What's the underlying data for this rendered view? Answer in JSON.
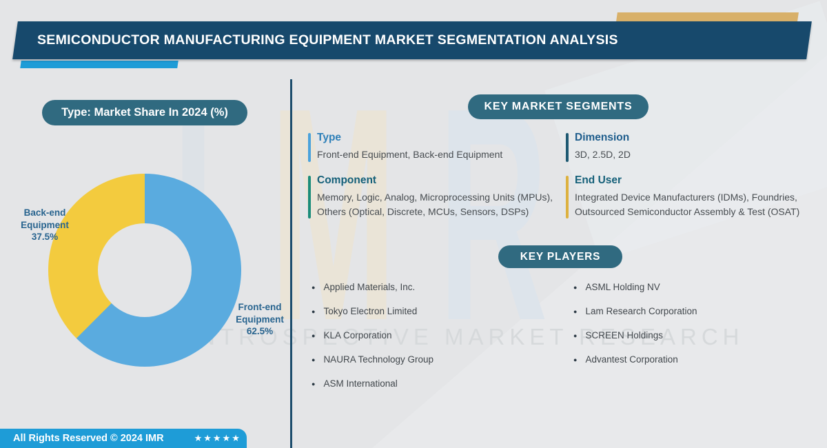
{
  "header": {
    "title": "SEMICONDUCTOR MANUFACTURING EQUIPMENT MARKET SEGMENTATION ANALYSIS"
  },
  "chart_data": {
    "type": "pie",
    "donut": true,
    "title": "Type: Market Share In 2024 (%)",
    "labels": [
      "Front-end Equipment",
      "Back-end Equipment"
    ],
    "values": [
      62.5,
      37.5
    ],
    "value_labels": [
      "62.5%",
      "37.5%"
    ],
    "colors": [
      "#5aabdf",
      "#f3cb3e"
    ],
    "start_angle_deg": 0,
    "direction": "clockwise",
    "legend_position": "outside-labels",
    "hole_color": "#e4e5e7"
  },
  "chart_section": {
    "badge": "Type: Market Share In 2024 (%)"
  },
  "segments": {
    "badge": "KEY MARKET SEGMENTS",
    "items": [
      {
        "title": "Type",
        "text": "Front-end Equipment, Back-end Equipment",
        "accent": "#4aa2dc"
      },
      {
        "title": "Dimension",
        "text": "3D, 2.5D, 2D",
        "accent": "#1e5972"
      },
      {
        "title": "Component",
        "text": "Memory, Logic, Analog, Microprocessing Units (MPUs), Others (Optical, Discrete, MCUs, Sensors, DSPs)",
        "accent": "#1a8c7a"
      },
      {
        "title": "End User",
        "text": "Integrated Device Manufacturers (IDMs), Foundries, Outsourced Semiconductor Assembly & Test (OSAT)",
        "accent": "#ddb13f"
      }
    ]
  },
  "players": {
    "badge": "KEY PLAYERS",
    "col1": [
      "Applied Materials, Inc.",
      "Tokyo Electron Limited",
      "KLA Corporation",
      "NAURA Technology Group",
      "ASM International"
    ],
    "col2": [
      "ASML Holding NV",
      "Lam Research Corporation",
      "SCREEN Holdings",
      "Advantest Corporation"
    ]
  },
  "footer": {
    "text": "All Rights Reserved © 2024 IMR",
    "stars": "★★★★★"
  },
  "watermark": {
    "letter_i": "I",
    "letter_m": "M",
    "letter_r": "R",
    "text": "INTROSPECTIVE MARKET RESEARCH"
  },
  "colors": {
    "banner": "#17496c",
    "pill": "#306a80",
    "accent_blue": "#1e9cd7",
    "gold": "#d8b069",
    "divider": "#1d4d6d",
    "background": "#e4e5e7"
  }
}
